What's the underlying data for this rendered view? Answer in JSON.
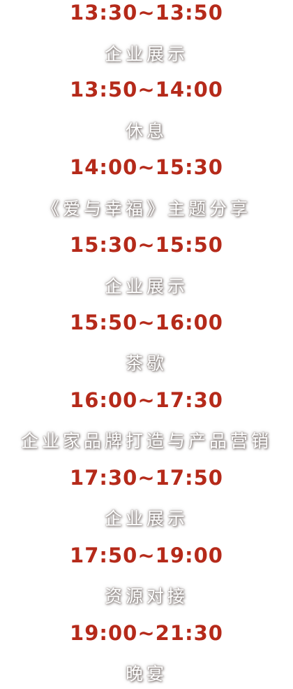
{
  "schedule": [
    {
      "time": "13:30~13:50",
      "title": "企业展示"
    },
    {
      "time": "13:50~14:00",
      "title": "休息"
    },
    {
      "time": "14:00~15:30",
      "title": "《爱与幸福》主题分享"
    },
    {
      "time": "15:30~15:50",
      "title": "企业展示"
    },
    {
      "time": "15:50~16:00",
      "title": "茶歇"
    },
    {
      "time": "16:00~17:30",
      "title": "企业家品牌打造与产品营销"
    },
    {
      "time": "17:30~17:50",
      "title": "企业展示"
    },
    {
      "time": "17:50~19:00",
      "title": "资源对接"
    },
    {
      "time": "19:00~21:30",
      "title": "晚宴"
    }
  ],
  "colors": {
    "time_text": "#b52a1a",
    "title_text": "#ffffff"
  }
}
